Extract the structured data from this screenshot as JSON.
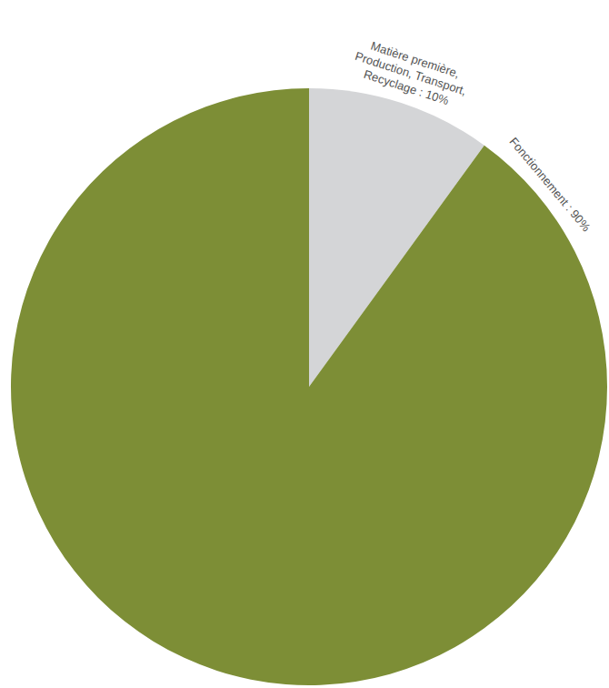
{
  "chart_data": {
    "type": "pie",
    "categories": [
      "Matière première, Production, Transport, Recyclage : 10%",
      "Fonctionnement : 90%"
    ],
    "values": [
      10,
      90
    ],
    "colors": [
      "#d4d5d7",
      "#7d8e36"
    ]
  }
}
